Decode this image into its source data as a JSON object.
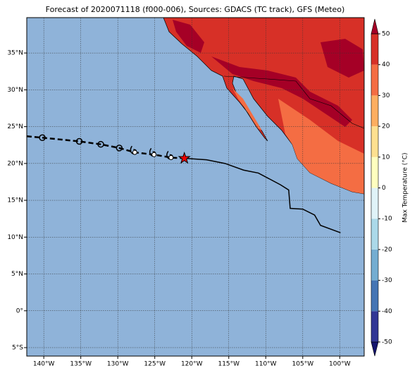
{
  "chart_data": {
    "type": "map",
    "title": "Forecast of 2020071118 (f000-006), Sources: GDACS (TC track), GFS (Meteo)",
    "xlim": [
      -142.3,
      -96.7
    ],
    "ylim": [
      -6.15,
      39.8
    ],
    "xticks": [
      {
        "value": -140,
        "label": "140°W"
      },
      {
        "value": -135,
        "label": "135°W"
      },
      {
        "value": -130,
        "label": "130°W"
      },
      {
        "value": -125,
        "label": "125°W"
      },
      {
        "value": -120,
        "label": "120°W"
      },
      {
        "value": -115,
        "label": "115°W"
      },
      {
        "value": -110,
        "label": "110°W"
      },
      {
        "value": -105,
        "label": "105°W"
      },
      {
        "value": -100,
        "label": "100°W"
      }
    ],
    "yticks": [
      {
        "value": -5,
        "label": "5°S"
      },
      {
        "value": 0,
        "label": "0°"
      },
      {
        "value": 5,
        "label": "5°N"
      },
      {
        "value": 10,
        "label": "10°N"
      },
      {
        "value": 15,
        "label": "15°N"
      },
      {
        "value": 20,
        "label": "20°N"
      },
      {
        "value": 25,
        "label": "25°N"
      },
      {
        "value": 30,
        "label": "30°N"
      },
      {
        "value": 35,
        "label": "35°N"
      }
    ],
    "grid": true,
    "ocean_color": "#8fb3d9",
    "past_track": {
      "lon": [
        -142.3,
        -140.2,
        -135.2,
        -132.3,
        -129.8,
        -127.7,
        -125.1,
        -122.8,
        -121
      ],
      "lat": [
        23.7,
        23.5,
        23.0,
        22.6,
        22.1,
        21.5,
        21.2,
        20.8,
        20.7
      ],
      "markers": [
        "none",
        "circle",
        "circle",
        "circle",
        "circle",
        "storm",
        "storm",
        "storm",
        "star"
      ]
    },
    "forecast_track": {
      "lon": [
        -121,
        -118,
        -115.5,
        -113,
        -111,
        -109.5,
        -108,
        -106.9,
        -106.7,
        -105,
        -103.4,
        -102.6,
        -99.9
      ],
      "lat": [
        20.7,
        20.5,
        20.0,
        19.1,
        18.7,
        17.9,
        17.1,
        16.4,
        13.9,
        13.8,
        13.0,
        11.6,
        10.6
      ]
    },
    "colorbar": {
      "label": "Max Temperature (°C)",
      "lim": [
        -50,
        50
      ],
      "ticks": [
        -50,
        -40,
        -30,
        -20,
        -10,
        0,
        10,
        20,
        30,
        40,
        50
      ],
      "colors": [
        "#14146e",
        "#313695",
        "#4575b4",
        "#74add1",
        "#abd9e9",
        "#e0f3f8",
        "#ffffbf",
        "#fee090",
        "#fdae61",
        "#f46d43",
        "#d73027",
        "#a50026"
      ]
    }
  }
}
